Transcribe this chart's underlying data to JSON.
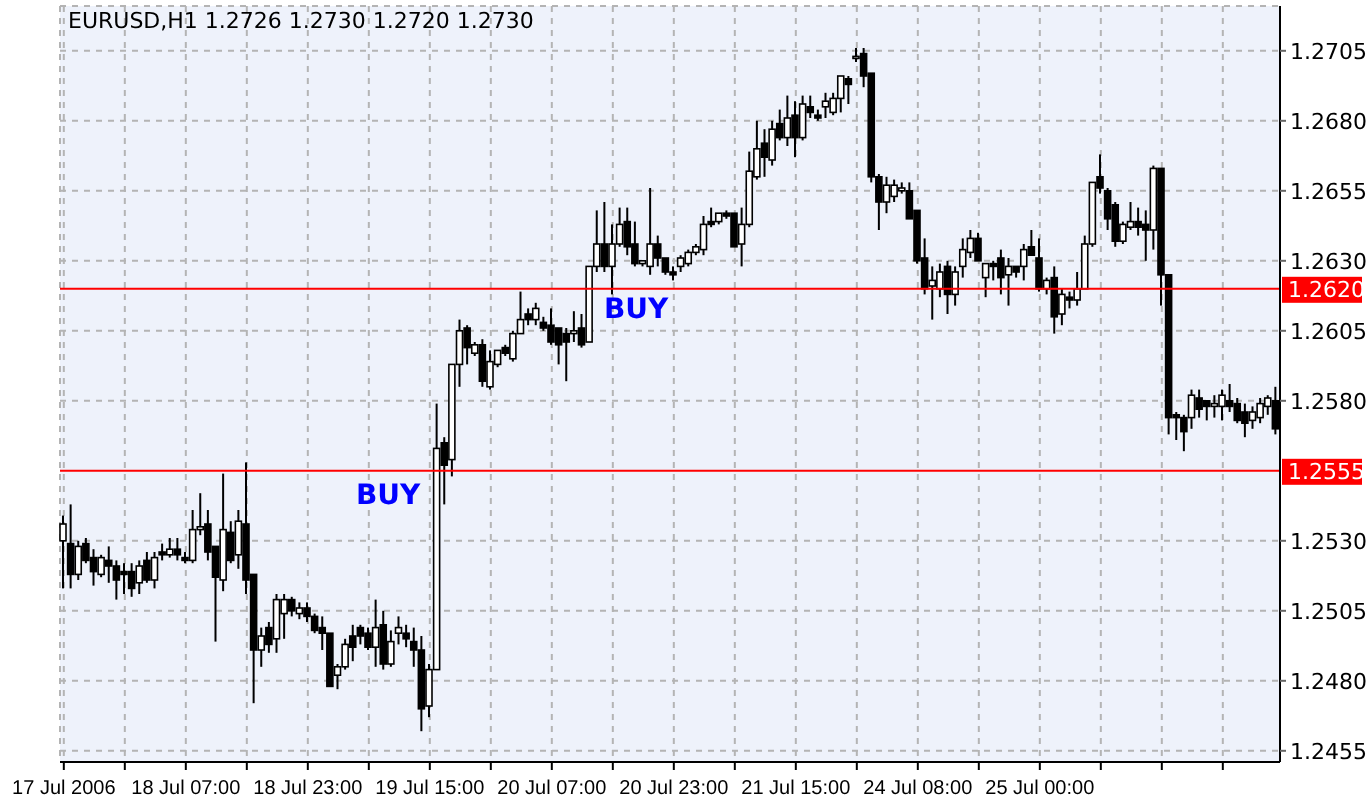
{
  "chart_data": {
    "type": "candlestick",
    "title": "EURUSD,H1 1.2726 1.2730 1.2720 1.2730",
    "categories": [
      "17 Jul 2006",
      null,
      null,
      null,
      null,
      null,
      null,
      null,
      null,
      null,
      null,
      null,
      null,
      null,
      null,
      null,
      "18 Jul 07:00",
      null,
      null,
      null,
      null,
      null,
      null,
      null,
      null,
      null,
      null,
      null,
      null,
      null,
      null,
      null,
      "18 Jul 23:00",
      null,
      null,
      null,
      null,
      null,
      null,
      null,
      null,
      null,
      null,
      null,
      null,
      null,
      null,
      null,
      "19 Jul 15:00",
      null,
      null,
      null,
      null,
      null,
      null,
      null,
      null,
      null,
      null,
      null,
      null,
      null,
      null,
      null,
      "20 Jul 07:00",
      null,
      null,
      null,
      null,
      null,
      null,
      null,
      null,
      null,
      null,
      null,
      null,
      null,
      null,
      null,
      "20 Jul 23:00",
      null,
      null,
      null,
      null,
      null,
      null,
      null,
      null,
      null,
      null,
      null,
      null,
      null,
      null,
      null,
      "21 Jul 15:00",
      null,
      null,
      null,
      null,
      null,
      null,
      null,
      null,
      null,
      null,
      null,
      null,
      null,
      null,
      null,
      "24 Jul 08:00",
      null,
      null,
      null,
      null,
      null,
      null,
      null,
      null,
      null,
      null,
      null,
      null,
      null,
      null,
      null,
      "25 Jul 00:00",
      null,
      null,
      null,
      null,
      null,
      null,
      null,
      null,
      null,
      null,
      null,
      null,
      null,
      null,
      null,
      null,
      null,
      null,
      null,
      null,
      null,
      null,
      null,
      null,
      null,
      null,
      null,
      null,
      null,
      null,
      null
    ],
    "ohlc": [
      [
        1.253,
        1.2539,
        1.2513,
        1.2536
      ],
      [
        1.2529,
        1.2543,
        1.2513,
        1.2518
      ],
      [
        1.2518,
        1.253,
        1.2516,
        1.2528
      ],
      [
        1.2529,
        1.2531,
        1.2522,
        1.2523
      ],
      [
        1.2524,
        1.2527,
        1.2514,
        1.2519
      ],
      [
        1.2518,
        1.2525,
        1.2517,
        1.2524
      ],
      [
        1.2523,
        1.2528,
        1.2515,
        1.2521
      ],
      [
        1.2521,
        1.2523,
        1.2509,
        1.2516
      ],
      [
        1.2519,
        1.2522,
        1.2511,
        1.2518
      ],
      [
        1.2519,
        1.2522,
        1.251,
        1.2513
      ],
      [
        1.2515,
        1.2523,
        1.2511,
        1.2521
      ],
      [
        1.2523,
        1.2526,
        1.2515,
        1.2516
      ],
      [
        1.2516,
        1.2526,
        1.2513,
        1.2524
      ],
      [
        1.2526,
        1.2529,
        1.2523,
        1.2525
      ],
      [
        1.2525,
        1.2531,
        1.2524,
        1.2527
      ],
      [
        1.2527,
        1.2531,
        1.2523,
        1.2525
      ],
      [
        1.2524,
        1.2526,
        1.2522,
        1.2523
      ],
      [
        1.2523,
        1.2541,
        1.2522,
        1.2534
      ],
      [
        1.2534,
        1.2547,
        1.2532,
        1.2535
      ],
      [
        1.2536,
        1.2541,
        1.2523,
        1.2526
      ],
      [
        1.2528,
        1.2528,
        1.2494,
        1.2517
      ],
      [
        1.2516,
        1.2554,
        1.2512,
        1.2534
      ],
      [
        1.2533,
        1.2537,
        1.2522,
        1.2523
      ],
      [
        1.2525,
        1.2541,
        1.252,
        1.2537
      ],
      [
        1.2536,
        1.2558,
        1.2511,
        1.2516
      ],
      [
        1.2518,
        1.2518,
        1.2472,
        1.2491
      ],
      [
        1.2491,
        1.2499,
        1.2485,
        1.2496
      ],
      [
        1.2499,
        1.2501,
        1.249,
        1.2493
      ],
      [
        1.2495,
        1.2511,
        1.249,
        1.2509
      ],
      [
        1.2504,
        1.2511,
        1.2495,
        1.2509
      ],
      [
        1.2509,
        1.251,
        1.2503,
        1.2505
      ],
      [
        1.2504,
        1.2508,
        1.2502,
        1.2506
      ],
      [
        1.2506,
        1.2508,
        1.2501,
        1.2503
      ],
      [
        1.2503,
        1.2504,
        1.2497,
        1.2498
      ],
      [
        1.2499,
        1.2503,
        1.2491,
        1.2497
      ],
      [
        1.2497,
        1.2497,
        1.2478,
        1.2478
      ],
      [
        1.2482,
        1.2486,
        1.2477,
        1.2485
      ],
      [
        1.2485,
        1.2495,
        1.2484,
        1.2493
      ],
      [
        1.2496,
        1.25,
        1.2487,
        1.2492
      ],
      [
        1.2499,
        1.25,
        1.2493,
        1.2496
      ],
      [
        1.2497,
        1.2499,
        1.2491,
        1.2492
      ],
      [
        1.2492,
        1.2509,
        1.2485,
        1.2499
      ],
      [
        1.25,
        1.2505,
        1.2484,
        1.2486
      ],
      [
        1.2486,
        1.2498,
        1.2485,
        1.2494
      ],
      [
        1.2497,
        1.2503,
        1.2493,
        1.2499
      ],
      [
        1.2497,
        1.25,
        1.2492,
        1.2495
      ],
      [
        1.2494,
        1.2499,
        1.2485,
        1.2491
      ],
      [
        1.2491,
        1.2496,
        1.2462,
        1.247
      ],
      [
        1.2471,
        1.2486,
        1.2467,
        1.2484
      ],
      [
        1.2484,
        1.2579,
        1.2484,
        1.2563
      ],
      [
        1.2565,
        1.2567,
        1.2543,
        1.2557
      ],
      [
        1.2559,
        1.2593,
        1.2553,
        1.2593
      ],
      [
        1.2593,
        1.2609,
        1.2585,
        1.2605
      ],
      [
        1.2606,
        1.2607,
        1.2593,
        1.2599
      ],
      [
        1.2597,
        1.2601,
        1.2596,
        1.26
      ],
      [
        1.26,
        1.2602,
        1.2585,
        1.2587
      ],
      [
        1.2585,
        1.2598,
        1.2584,
        1.2594
      ],
      [
        1.2593,
        1.2598,
        1.2592,
        1.2598
      ],
      [
        1.2599,
        1.26,
        1.2596,
        1.2597
      ],
      [
        1.2595,
        1.2605,
        1.2594,
        1.2604
      ],
      [
        1.2604,
        1.2619,
        1.2604,
        1.2609
      ],
      [
        1.2611,
        1.2613,
        1.2607,
        1.2609
      ],
      [
        1.2609,
        1.2615,
        1.2607,
        1.2613
      ],
      [
        1.2608,
        1.261,
        1.2605,
        1.2606
      ],
      [
        1.2607,
        1.2613,
        1.26,
        1.2601
      ],
      [
        1.2606,
        1.2606,
        1.2593,
        1.26
      ],
      [
        1.2604,
        1.2606,
        1.2587,
        1.2601
      ],
      [
        1.2604,
        1.2612,
        1.2601,
        1.2605
      ],
      [
        1.2606,
        1.2611,
        1.2599,
        1.26
      ],
      [
        1.2601,
        1.2628,
        1.2601,
        1.2628
      ],
      [
        1.2628,
        1.2648,
        1.2626,
        1.2636
      ],
      [
        1.2636,
        1.2651,
        1.2626,
        1.2628
      ],
      [
        1.2628,
        1.2643,
        1.2618,
        1.2636
      ],
      [
        1.2636,
        1.2649,
        1.2635,
        1.2643
      ],
      [
        1.2644,
        1.2649,
        1.2632,
        1.2635
      ],
      [
        1.2636,
        1.2644,
        1.2628,
        1.2629
      ],
      [
        1.2629,
        1.263,
        1.2628,
        1.263
      ],
      [
        1.2628,
        1.2656,
        1.2625,
        1.2636
      ],
      [
        1.2636,
        1.2639,
        1.2628,
        1.2631
      ],
      [
        1.2631,
        1.2631,
        1.2625,
        1.2626
      ],
      [
        1.2626,
        1.2628,
        1.2623,
        1.2625
      ],
      [
        1.2628,
        1.2632,
        1.2626,
        1.2631
      ],
      [
        1.2629,
        1.2634,
        1.2628,
        1.2633
      ],
      [
        1.2633,
        1.2636,
        1.2632,
        1.2635
      ],
      [
        1.2634,
        1.2646,
        1.2632,
        1.2643
      ],
      [
        1.2644,
        1.2649,
        1.2642,
        1.2643
      ],
      [
        1.2644,
        1.2647,
        1.2643,
        1.2647
      ],
      [
        1.2647,
        1.2648,
        1.2645,
        1.2646
      ],
      [
        1.2647,
        1.2647,
        1.2635,
        1.2635
      ],
      [
        1.2636,
        1.2649,
        1.2628,
        1.2643
      ],
      [
        1.2643,
        1.2669,
        1.2642,
        1.2662
      ],
      [
        1.266,
        1.268,
        1.2659,
        1.267
      ],
      [
        1.2672,
        1.2677,
        1.266,
        1.2667
      ],
      [
        1.2666,
        1.268,
        1.2664,
        1.2677
      ],
      [
        1.2679,
        1.2684,
        1.2673,
        1.2674
      ],
      [
        1.2674,
        1.2689,
        1.2671,
        1.2681
      ],
      [
        1.2682,
        1.2687,
        1.2667,
        1.2674
      ],
      [
        1.2674,
        1.2689,
        1.2673,
        1.2686
      ],
      [
        1.2685,
        1.2689,
        1.2681,
        1.2683
      ],
      [
        1.2682,
        1.2684,
        1.268,
        1.2681
      ],
      [
        1.2685,
        1.269,
        1.2681,
        1.2687
      ],
      [
        1.2683,
        1.269,
        1.2682,
        1.2688
      ],
      [
        1.2688,
        1.2696,
        1.2683,
        1.2696
      ],
      [
        1.2695,
        1.2696,
        1.2686,
        1.2693
      ],
      [
        1.2703,
        1.2706,
        1.2701,
        1.2703
      ],
      [
        1.2704,
        1.2706,
        1.2692,
        1.2696
      ],
      [
        1.2697,
        1.2697,
        1.2658,
        1.266
      ],
      [
        1.266,
        1.2661,
        1.2641,
        1.2651
      ],
      [
        1.2651,
        1.266,
        1.2647,
        1.2657
      ],
      [
        1.2653,
        1.2659,
        1.2651,
        1.2657
      ],
      [
        1.2655,
        1.2658,
        1.2654,
        1.2656
      ],
      [
        1.2655,
        1.2658,
        1.2645,
        1.2645
      ],
      [
        1.2648,
        1.2648,
        1.2629,
        1.263
      ],
      [
        1.2631,
        1.2638,
        1.2618,
        1.262
      ],
      [
        1.2621,
        1.2628,
        1.2609,
        1.2623
      ],
      [
        1.262,
        1.2629,
        1.2617,
        1.2626
      ],
      [
        1.2628,
        1.263,
        1.2611,
        1.2618
      ],
      [
        1.2618,
        1.2628,
        1.2614,
        1.2626
      ],
      [
        1.2628,
        1.2638,
        1.2624,
        1.2634
      ],
      [
        1.2633,
        1.2641,
        1.2631,
        1.2638
      ],
      [
        1.2638,
        1.264,
        1.263,
        1.263
      ],
      [
        1.2624,
        1.2629,
        1.2617,
        1.2629
      ],
      [
        1.2629,
        1.263,
        1.2623,
        1.2628
      ],
      [
        1.2631,
        1.2634,
        1.2618,
        1.2624
      ],
      [
        1.2625,
        1.2631,
        1.2614,
        1.2628
      ],
      [
        1.2628,
        1.2628,
        1.2624,
        1.2626
      ],
      [
        1.2628,
        1.2636,
        1.2623,
        1.2634
      ],
      [
        1.2635,
        1.2641,
        1.2632,
        1.2632
      ],
      [
        1.2631,
        1.2638,
        1.2619,
        1.262
      ],
      [
        1.262,
        1.2624,
        1.2618,
        1.2623
      ],
      [
        1.2624,
        1.2628,
        1.2604,
        1.261
      ],
      [
        1.2611,
        1.262,
        1.2607,
        1.2618
      ],
      [
        1.2617,
        1.2619,
        1.2613,
        1.2616
      ],
      [
        1.2616,
        1.2626,
        1.2614,
        1.262
      ],
      [
        1.262,
        1.2639,
        1.262,
        1.2636
      ],
      [
        1.2636,
        1.2658,
        1.2635,
        1.2658
      ],
      [
        1.266,
        1.2668,
        1.2654,
        1.2656
      ],
      [
        1.2655,
        1.2656,
        1.2641,
        1.2645
      ],
      [
        1.265,
        1.2651,
        1.2635,
        1.2637
      ],
      [
        1.2637,
        1.2644,
        1.2636,
        1.2643
      ],
      [
        1.2642,
        1.2651,
        1.2641,
        1.2644
      ],
      [
        1.2644,
        1.2649,
        1.2639,
        1.2642
      ],
      [
        1.2643,
        1.2648,
        1.263,
        1.2641
      ],
      [
        1.2641,
        1.2664,
        1.2634,
        1.2663
      ],
      [
        1.2663,
        1.2663,
        1.2614,
        1.2625
      ],
      [
        1.2625,
        1.2625,
        1.2568,
        1.2574
      ],
      [
        1.2575,
        1.2576,
        1.2566,
        1.2574
      ],
      [
        1.2574,
        1.2575,
        1.2562,
        1.2569
      ],
      [
        1.2574,
        1.2584,
        1.257,
        1.2582
      ],
      [
        1.2581,
        1.2584,
        1.2574,
        1.2577
      ],
      [
        1.258,
        1.258,
        1.2573,
        1.2578
      ],
      [
        1.2578,
        1.2582,
        1.2574,
        1.2579
      ],
      [
        1.2578,
        1.2584,
        1.2573,
        1.2582
      ],
      [
        1.258,
        1.2586,
        1.2576,
        1.2578
      ],
      [
        1.2579,
        1.2581,
        1.2572,
        1.2573
      ],
      [
        1.2576,
        1.2579,
        1.2567,
        1.2572
      ],
      [
        1.2573,
        1.2578,
        1.257,
        1.2576
      ],
      [
        1.2574,
        1.2581,
        1.2572,
        1.2579
      ],
      [
        1.2578,
        1.2582,
        1.2575,
        1.2581
      ],
      [
        1.258,
        1.2585,
        1.2568,
        1.257
      ]
    ],
    "ylim": [
      1.2451,
      1.2721
    ],
    "yticks": [
      1.2455,
      {
        "value": 1.248,
        "label": "1.2480"
      },
      1.2505,
      {
        "value": 1.253,
        "label": "1.2530"
      },
      {
        "value": 1.258,
        "label": "1.2580"
      },
      1.2605,
      {
        "value": 1.263,
        "label": "1.2630"
      },
      1.2655,
      {
        "value": 1.268,
        "label": "1.2680"
      },
      1.2705
    ],
    "grid": true,
    "ref_lines": [
      {
        "axis": "y",
        "value": 1.262,
        "label": "1.2620",
        "color": "#ff0000"
      },
      {
        "axis": "y",
        "value": 1.2555,
        "label": "1.2555",
        "color": "#ff0000"
      }
    ],
    "annotations": [
      "BUY",
      "BUY"
    ]
  }
}
